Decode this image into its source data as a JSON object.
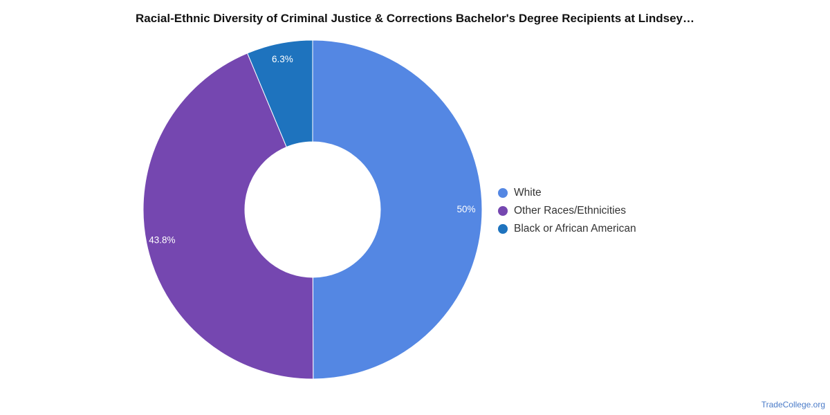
{
  "chart_data": {
    "type": "pie",
    "title": "Racial-Ethnic Diversity of Criminal Justice & Corrections Bachelor's Degree Recipients at Lindsey…",
    "donut": true,
    "legend_position": "right",
    "slices": [
      {
        "label": "White",
        "value": 50,
        "display": "50%",
        "color": "#5487e3"
      },
      {
        "label": "Other Races/Ethnicities",
        "value": 43.8,
        "display": "43.8%",
        "color": "#7547b0"
      },
      {
        "label": "Black or African American",
        "value": 6.3,
        "display": "6.3%",
        "color": "#1e73be"
      }
    ]
  },
  "footer": {
    "watermark": "TradeCollege.org"
  }
}
